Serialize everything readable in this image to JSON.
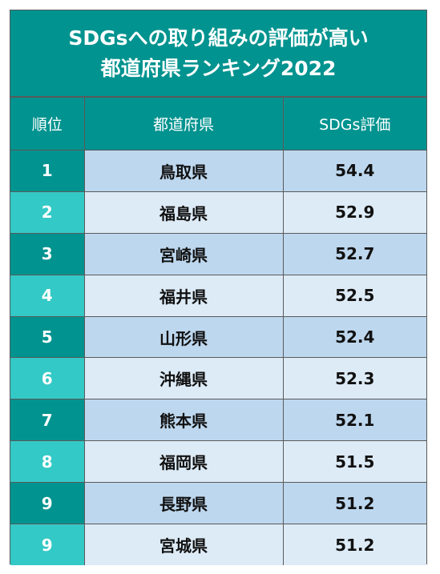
{
  "title": {
    "line1": "SDGsへの取り組みの評価が高い",
    "line2": "都道府県ランキング2022"
  },
  "columns": {
    "rank": "順位",
    "prefecture": "都道府県",
    "score": "SDGs評価"
  },
  "rows": [
    {
      "rank": "1",
      "prefecture": "鳥取県",
      "score": "54.4"
    },
    {
      "rank": "2",
      "prefecture": "福島県",
      "score": "52.9"
    },
    {
      "rank": "3",
      "prefecture": "宮崎県",
      "score": "52.7"
    },
    {
      "rank": "4",
      "prefecture": "福井県",
      "score": "52.5"
    },
    {
      "rank": "5",
      "prefecture": "山形県",
      "score": "52.4"
    },
    {
      "rank": "6",
      "prefecture": "沖縄県",
      "score": "52.3"
    },
    {
      "rank": "7",
      "prefecture": "熊本県",
      "score": "52.1"
    },
    {
      "rank": "8",
      "prefecture": "福岡県",
      "score": "51.5"
    },
    {
      "rank": "9",
      "prefecture": "長野県",
      "score": "51.2"
    },
    {
      "rank": "9",
      "prefecture": "宮城県",
      "score": "51.2"
    }
  ],
  "colors": {
    "header_teal": "#00938f",
    "rank_light_teal": "#33c9c6",
    "row_blue_dark": "#bdd7ee",
    "row_blue_light": "#ddebf7"
  }
}
